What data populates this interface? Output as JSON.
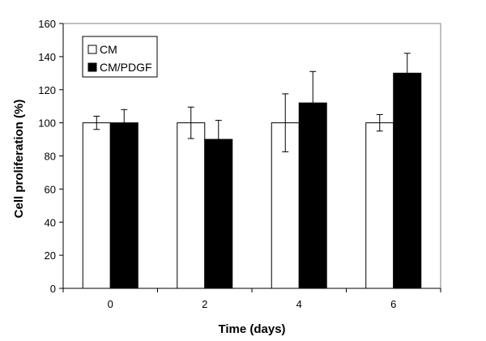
{
  "chart_data": {
    "type": "bar",
    "title": "",
    "xlabel": "Time (days)",
    "ylabel": "Cell proliferation (%)",
    "categories": [
      "0",
      "2",
      "4",
      "6"
    ],
    "ylim": [
      0,
      160
    ],
    "yticks": [
      0,
      20,
      40,
      60,
      80,
      100,
      120,
      140,
      160
    ],
    "grid": false,
    "legend_position": "top-left",
    "series": [
      {
        "name": "CM",
        "values": [
          100,
          100,
          100,
          100
        ],
        "errors": [
          4,
          9.5,
          17.5,
          5
        ],
        "fill": "#ffffff",
        "stroke": "#000000"
      },
      {
        "name": "CM/PDGF",
        "values": [
          100,
          90,
          112,
          130
        ],
        "errors": [
          8,
          11.5,
          19,
          12
        ],
        "fill": "#000000",
        "stroke": "#000000"
      }
    ]
  }
}
